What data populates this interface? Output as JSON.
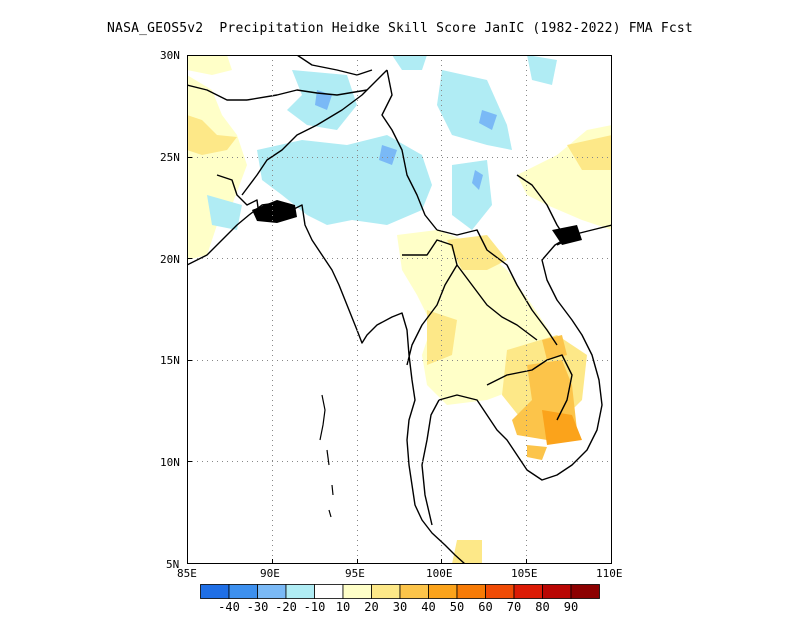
{
  "title": "NASA_GEOS5v2  Precipitation Heidke Skill Score JanIC (1982-2022) FMA Fcst",
  "map": {
    "lon_range": [
      85,
      110
    ],
    "lat_range": [
      5,
      30
    ],
    "lon_ticks": [
      "85E",
      "90E",
      "95E",
      "100E",
      "105E",
      "110E"
    ],
    "lat_ticks": [
      "30N",
      "25N",
      "20N",
      "15N",
      "10N",
      "5N"
    ],
    "gridlines": "dotted",
    "colors": {
      "-40": "#1f6fe6",
      "-30": "#3d90ef",
      "-20": "#7ab9f6",
      "-10": "#b0ecf4",
      "10": "#ffffc8",
      "20": "#fde888",
      "30": "#fcc44a",
      "40": "#fba31b",
      "50": "#f77b06",
      "60": "#f04b05",
      "70": "#dc1b05",
      "80": "#b90603",
      "90": "#8c0000",
      "coast": "#000000"
    }
  },
  "colorbar": {
    "colors": [
      "#1f6fe6",
      "#3d90ef",
      "#7ab9f6",
      "#b0ecf4",
      "#ffffff",
      "#ffffc8",
      "#fde888",
      "#fcc44a",
      "#fba31b",
      "#f77b06",
      "#f04b05",
      "#dc1b05",
      "#b90603",
      "#8c0000"
    ],
    "labels": [
      "-40",
      "-30",
      "-20",
      "-10",
      "10",
      "20",
      "30",
      "40",
      "50",
      "60",
      "70",
      "80",
      "90"
    ]
  }
}
